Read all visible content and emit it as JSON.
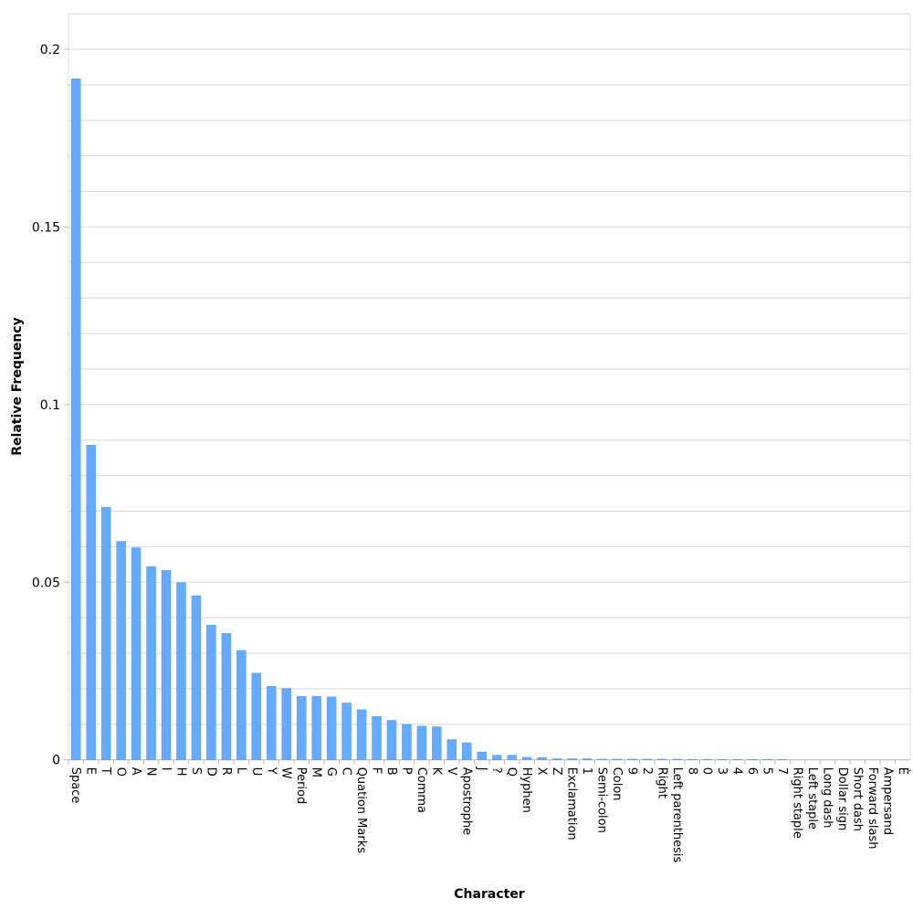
{
  "chart_data": {
    "type": "bar",
    "title": "",
    "xlabel": "Character",
    "ylabel": "Relative Frequency",
    "ylim": [
      0,
      0.2
    ],
    "yticks": [
      "0",
      "0.05",
      "0.1",
      "0.15",
      "0.2"
    ],
    "grid": true,
    "grid_step": 0.01,
    "bar_color": "#66aaff",
    "categories": [
      "Space",
      "E",
      "T",
      "O",
      "A",
      "N",
      "I",
      "H",
      "S",
      "D",
      "R",
      "L",
      "U",
      "Y",
      "W",
      "Period",
      "M",
      "G",
      "C",
      "Quation Marks",
      "F",
      "B",
      "P",
      "Comma",
      "K",
      "V",
      "Apostrophe",
      "J",
      "?",
      "Q",
      "Hyphen",
      "X",
      "Z",
      "Exclamation",
      "1",
      "Semi-colon",
      "Colon",
      "9",
      "2",
      "Right",
      "Left parenthesis",
      "8",
      "0",
      "3",
      "4",
      "6",
      "5",
      "7",
      "Right staple",
      "Left staple",
      "Long dash",
      "Dollar sign",
      "Short dash",
      "Forward slash",
      "Ampersand",
      "È"
    ],
    "values": [
      0.1917,
      0.0886,
      0.0711,
      0.0615,
      0.0597,
      0.0544,
      0.0533,
      0.0499,
      0.0462,
      0.0379,
      0.0356,
      0.0308,
      0.0244,
      0.0207,
      0.0201,
      0.0179,
      0.0179,
      0.0177,
      0.016,
      0.0141,
      0.0122,
      0.0111,
      0.01,
      0.0095,
      0.0093,
      0.0057,
      0.0048,
      0.0022,
      0.0013,
      0.0013,
      0.0007,
      0.0006,
      0.0003,
      0.0003,
      0.0003,
      0.0002,
      0.0002,
      0.0002,
      0.0002,
      0.0002,
      0.0002,
      0.0001,
      0.0001,
      0.0001,
      0.0001,
      0.0001,
      0.0001,
      0.0001,
      0,
      0,
      0,
      0,
      0,
      0,
      0,
      0
    ]
  }
}
